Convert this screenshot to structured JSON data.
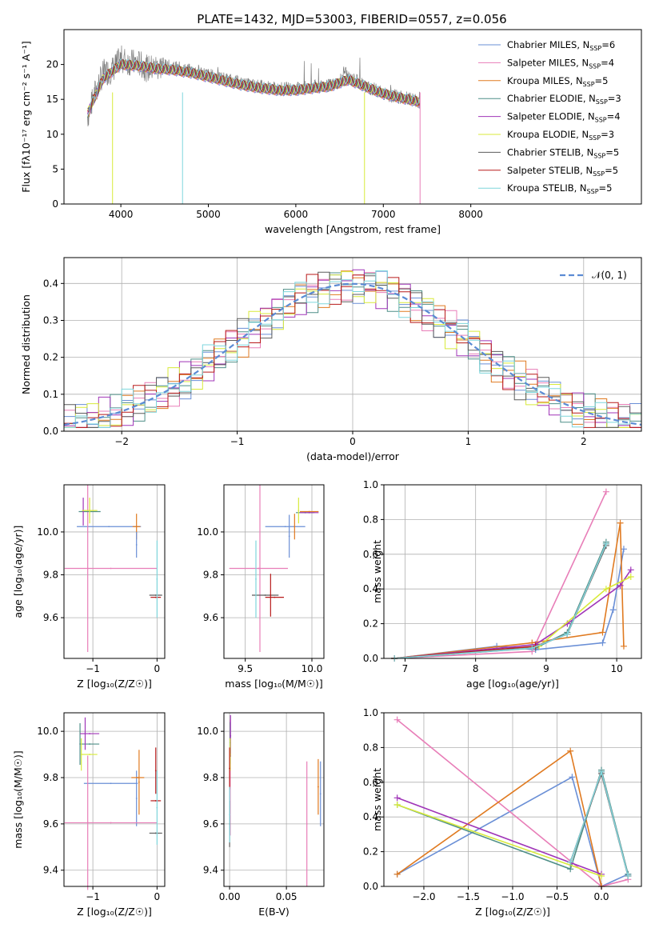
{
  "title": "PLATE=1432, MJD=53003, FIBERID=0557, z=0.056",
  "colors": {
    "chabrier_miles": "#6a8fd6",
    "salpeter_miles": "#e87eb8",
    "kroupa_miles": "#e07a20",
    "chabrier_elodie": "#4f8f88",
    "salpeter_elodie": "#a035b8",
    "kroupa_elodie": "#d8ea3a",
    "chabrier_stelib": "#5c5c5c",
    "salpeter_stelib": "#b81a1a",
    "kroupa_stelib": "#7ed6dc",
    "gauss": "#5b8bd4"
  },
  "legend": [
    {
      "label": "Chabrier MILES, N",
      "sub": "SSP",
      "suffix": "=6",
      "key": "chabrier_miles"
    },
    {
      "label": "Salpeter MILES, N",
      "sub": "SSP",
      "suffix": "=4",
      "key": "salpeter_miles"
    },
    {
      "label": "Kroupa MILES, N",
      "sub": "SSP",
      "suffix": "=5",
      "key": "kroupa_miles"
    },
    {
      "label": "Chabrier ELODIE, N",
      "sub": "SSP",
      "suffix": "=3",
      "key": "chabrier_elodie"
    },
    {
      "label": "Salpeter ELODIE, N",
      "sub": "SSP",
      "suffix": "=4",
      "key": "salpeter_elodie"
    },
    {
      "label": "Kroupa ELODIE, N",
      "sub": "SSP",
      "suffix": "=3",
      "key": "kroupa_elodie"
    },
    {
      "label": "Chabrier STELIB, N",
      "sub": "SSP",
      "suffix": "=5",
      "key": "chabrier_stelib"
    },
    {
      "label": "Salpeter STELIB, N",
      "sub": "SSP",
      "suffix": "=5",
      "key": "salpeter_stelib"
    },
    {
      "label": "Kroupa STELIB, N",
      "sub": "SSP",
      "suffix": "=5",
      "key": "kroupa_stelib"
    }
  ],
  "chart_data": [
    {
      "type": "line",
      "xlabel": "wavelength [Angstrom, rest frame]",
      "ylabel": "Flux [fλ10⁻¹⁷ erg cm⁻² s⁻¹ A⁻¹]",
      "xlim": [
        3350,
        9950
      ],
      "ylim": [
        0,
        25
      ],
      "xticks": [
        4000,
        5000,
        6000,
        7000,
        8000
      ],
      "yticks": [
        0,
        5,
        10,
        15,
        20
      ],
      "series_note_none": "",
      "spectrum": {
        "x": [
          3620,
          3700,
          3800,
          3900,
          4000,
          4100,
          4200,
          4300,
          4400,
          4500,
          4600,
          4700,
          4800,
          4900,
          5000,
          5200,
          5400,
          5600,
          5800,
          6000,
          6200,
          6400,
          6500,
          6560,
          6600,
          6700,
          6800,
          6900,
          7000,
          7100,
          7200,
          7300,
          7420
        ],
        "y": [
          12.5,
          15.8,
          18.8,
          19.2,
          20.8,
          20.3,
          20.2,
          19.4,
          19.6,
          19.8,
          19.6,
          19.3,
          19.1,
          19.0,
          18.5,
          17.9,
          17.2,
          16.8,
          16.5,
          16.5,
          16.8,
          17.0,
          17.5,
          19.2,
          18.0,
          17.7,
          16.8,
          16.4,
          15.9,
          15.5,
          15.3,
          15.1,
          14.6
        ]
      },
      "model": {
        "x": [
          3620,
          3800,
          4000,
          4200,
          4400,
          4600,
          4800,
          5000,
          5200,
          5400,
          5600,
          5800,
          6000,
          6200,
          6400,
          6600,
          6800,
          7000,
          7200,
          7420
        ],
        "y": [
          13.0,
          18.0,
          20.0,
          19.8,
          19.4,
          19.2,
          18.8,
          18.2,
          17.6,
          17.0,
          16.6,
          16.3,
          16.3,
          16.6,
          16.9,
          17.8,
          16.8,
          15.8,
          15.2,
          14.6
        ]
      }
    },
    {
      "type": "line",
      "xlabel": "(data-model)/error",
      "ylabel": "Normed distribution",
      "xlim": [
        -2.5,
        2.5
      ],
      "ylim": [
        0,
        0.47
      ],
      "xticks": [
        -2,
        -1,
        0,
        1,
        2
      ],
      "yticks": [
        0.0,
        0.1,
        0.2,
        0.3,
        0.4
      ],
      "legend_label": "𝒩(0, 1)",
      "bins": {
        "start": -2.5,
        "width": 0.1,
        "count": 50
      }
    },
    {
      "type": "scatter",
      "xlabel": "Z [log₁₀(Z/Z☉)]",
      "ylabel": "age  [log₁₀(age/yr)]",
      "xlim": [
        -1.45,
        0.12
      ],
      "ylim": [
        9.41,
        10.22
      ],
      "xticks": [
        -1,
        0
      ],
      "yticks": [
        9.6,
        9.8,
        10.0
      ],
      "points": [
        {
          "s": "chabrier_miles",
          "x": -0.75,
          "y": 10.025,
          "xe": 0.5,
          "ye": 0.0
        },
        {
          "s": "salpeter_miles",
          "x": -0.72,
          "y": 9.83,
          "xe": 0.72,
          "ye": 0.0
        },
        {
          "s": "salpeter_miles",
          "x": -1.08,
          "y": 9.83,
          "xe": 0.0,
          "ye": 0.39
        },
        {
          "s": "kroupa_miles",
          "x": -0.32,
          "y": 10.025,
          "xe": 0.06,
          "ye": 0.06
        },
        {
          "s": "chabrier_elodie",
          "x": -1.05,
          "y": 10.095,
          "xe": 0.17,
          "ye": 0.0
        },
        {
          "s": "salpeter_elodie",
          "x": -1.15,
          "y": 10.095,
          "xe": 0.0,
          "ye": 0.065
        },
        {
          "s": "kroupa_elodie",
          "x": -1.05,
          "y": 10.1,
          "xe": 0.12,
          "ye": 0.06
        },
        {
          "s": "chabrier_stelib",
          "x": -0.02,
          "y": 9.705,
          "xe": 0.1,
          "ye": 0.0
        },
        {
          "s": "salpeter_stelib",
          "x": -0.02,
          "y": 9.695,
          "xe": 0.08,
          "ye": 0.0
        },
        {
          "s": "kroupa_stelib",
          "x": 0.0,
          "y": 9.78,
          "xe": 0.0,
          "ye": 0.18
        },
        {
          "s": "chabrier_miles",
          "x": -0.32,
          "y": 9.94,
          "xe": 0.0,
          "ye": 0.06
        }
      ]
    },
    {
      "type": "scatter",
      "xlabel": "mass [log₁₀(M/M☉)]",
      "ylabel": "",
      "xlim": [
        9.34,
        10.09
      ],
      "ylim": [
        9.41,
        10.22
      ],
      "xticks": [
        9.5,
        10.0
      ],
      "yticks": [
        9.6,
        9.8,
        10.0
      ],
      "points": [
        {
          "s": "chabrier_miles",
          "x": 9.8,
          "y": 10.025,
          "xe": 0.15,
          "ye": 0.0
        },
        {
          "s": "chabrier_miles",
          "x": 9.83,
          "y": 9.98,
          "xe": 0.0,
          "ye": 0.1
        },
        {
          "s": "salpeter_miles",
          "x": 9.6,
          "y": 9.83,
          "xe": 0.22,
          "ye": 0.0
        },
        {
          "s": "salpeter_miles",
          "x": 9.61,
          "y": 9.83,
          "xe": 0.0,
          "ye": 0.39
        },
        {
          "s": "kroupa_miles",
          "x": 9.98,
          "y": 10.095,
          "xe": 0.07,
          "ye": 0.0
        },
        {
          "s": "kroupa_miles",
          "x": 9.87,
          "y": 10.025,
          "xe": 0.0,
          "ye": 0.06
        },
        {
          "s": "chabrier_elodie",
          "x": 9.95,
          "y": 10.09,
          "xe": 0.07,
          "ye": 0.0
        },
        {
          "s": "salpeter_elodie",
          "x": 9.98,
          "y": 10.09,
          "xe": 0.07,
          "ye": 0.0
        },
        {
          "s": "kroupa_elodie",
          "x": 9.9,
          "y": 10.1,
          "xe": 0.0,
          "ye": 0.06
        },
        {
          "s": "chabrier_stelib",
          "x": 9.65,
          "y": 9.705,
          "xe": 0.1,
          "ye": 0.0
        },
        {
          "s": "salpeter_stelib",
          "x": 9.72,
          "y": 9.695,
          "xe": 0.07,
          "ye": 0.0
        },
        {
          "s": "salpeter_stelib",
          "x": 9.69,
          "y": 9.705,
          "xe": 0.0,
          "ye": 0.1
        },
        {
          "s": "kroupa_stelib",
          "x": 9.58,
          "y": 9.78,
          "xe": 0.0,
          "ye": 0.18
        }
      ]
    },
    {
      "type": "line",
      "xlabel": "age  [log₁₀(age/yr)]",
      "ylabel": "mass weight",
      "xlim": [
        6.7,
        10.35
      ],
      "ylim": [
        0,
        1.0
      ],
      "xticks": [
        7,
        8,
        9,
        10
      ],
      "yticks": [
        0.0,
        0.2,
        0.4,
        0.6,
        0.8,
        1.0
      ],
      "series": [
        {
          "s": "chabrier_miles",
          "x": [
            6.85,
            8.3,
            8.85,
            9.8,
            9.95,
            10.1
          ],
          "y": [
            0.0,
            0.07,
            0.05,
            0.09,
            0.28,
            0.63
          ]
        },
        {
          "s": "salpeter_miles",
          "x": [
            6.85,
            8.8,
            9.85
          ],
          "y": [
            0.0,
            0.04,
            0.96
          ]
        },
        {
          "s": "kroupa_miles",
          "x": [
            6.85,
            8.8,
            9.8,
            10.05,
            10.1
          ],
          "y": [
            0.0,
            0.09,
            0.15,
            0.78,
            0.07
          ]
        },
        {
          "s": "chabrier_elodie",
          "x": [
            6.85,
            8.85,
            9.3,
            9.85
          ],
          "y": [
            0.0,
            0.06,
            0.15,
            0.67
          ]
        },
        {
          "s": "salpeter_elodie",
          "x": [
            6.85,
            8.85,
            9.3,
            10.05,
            10.2
          ],
          "y": [
            0.0,
            0.08,
            0.2,
            0.42,
            0.51
          ]
        },
        {
          "s": "kroupa_elodie",
          "x": [
            6.85,
            8.9,
            9.85,
            10.2
          ],
          "y": [
            0.0,
            0.07,
            0.4,
            0.47
          ]
        },
        {
          "s": "chabrier_stelib",
          "x": [
            6.85,
            8.8,
            9.3,
            9.85
          ],
          "y": [
            0.0,
            0.06,
            0.14,
            0.65
          ]
        },
        {
          "s": "salpeter_stelib",
          "x": [
            6.85,
            8.85,
            9.3,
            9.85
          ],
          "y": [
            0.0,
            0.07,
            0.14,
            0.66
          ]
        },
        {
          "s": "kroupa_stelib",
          "x": [
            6.85,
            8.8,
            9.3,
            9.85
          ],
          "y": [
            0.0,
            0.06,
            0.14,
            0.66
          ]
        }
      ]
    },
    {
      "type": "scatter",
      "xlabel": "Z [log₁₀(Z/Z☉)]",
      "ylabel": "mass [log₁₀(M/M☉)]",
      "xlim": [
        -1.45,
        0.12
      ],
      "ylim": [
        9.33,
        10.08
      ],
      "xticks": [
        -1,
        0
      ],
      "yticks": [
        9.4,
        9.6,
        9.8,
        10.0
      ],
      "points": [
        {
          "s": "chabrier_miles",
          "x": -0.72,
          "y": 9.775,
          "xe": 0.42,
          "ye": 0.0
        },
        {
          "s": "chabrier_miles",
          "x": -0.32,
          "y": 9.71,
          "xe": 0.0,
          "ye": 0.12
        },
        {
          "s": "salpeter_miles",
          "x": -0.72,
          "y": 9.605,
          "xe": 0.72,
          "ye": 0.0
        },
        {
          "s": "salpeter_miles",
          "x": -1.08,
          "y": 9.605,
          "xe": 0.0,
          "ye": 0.29
        },
        {
          "s": "kroupa_miles",
          "x": -0.3,
          "y": 9.8,
          "xe": 0.1,
          "ye": 0.0
        },
        {
          "s": "kroupa_miles",
          "x": -0.28,
          "y": 9.78,
          "xe": 0.0,
          "ye": 0.14
        },
        {
          "s": "chabrier_elodie",
          "x": -1.05,
          "y": 9.945,
          "xe": 0.15,
          "ye": 0.0
        },
        {
          "s": "chabrier_elodie",
          "x": -1.2,
          "y": 9.945,
          "xe": 0.0,
          "ye": 0.09
        },
        {
          "s": "salpeter_elodie",
          "x": -1.05,
          "y": 9.99,
          "xe": 0.15,
          "ye": 0.0
        },
        {
          "s": "salpeter_elodie",
          "x": -1.12,
          "y": 9.99,
          "xe": 0.0,
          "ye": 0.07
        },
        {
          "s": "kroupa_elodie",
          "x": -1.05,
          "y": 9.9,
          "xe": 0.12,
          "ye": 0.0
        },
        {
          "s": "kroupa_elodie",
          "x": -1.18,
          "y": 9.9,
          "xe": 0.0,
          "ye": 0.07
        },
        {
          "s": "chabrier_stelib",
          "x": -0.02,
          "y": 9.56,
          "xe": 0.1,
          "ye": 0.0
        },
        {
          "s": "salpeter_stelib",
          "x": -0.02,
          "y": 9.7,
          "xe": 0.08,
          "ye": 0.0
        },
        {
          "s": "salpeter_stelib",
          "x": -0.02,
          "y": 9.83,
          "xe": 0.0,
          "ye": 0.1
        },
        {
          "s": "kroupa_stelib",
          "x": 0.0,
          "y": 9.67,
          "xe": 0.0,
          "ye": 0.16
        }
      ]
    },
    {
      "type": "scatter",
      "xlabel": "E(B-V)",
      "ylabel": "",
      "xlim": [
        -0.005,
        0.083
      ],
      "ylim": [
        9.33,
        10.08
      ],
      "xticks": [
        0.0,
        0.05
      ],
      "yticks": [
        9.4,
        9.6,
        9.8,
        10.0
      ],
      "points": [
        {
          "s": "chabrier_miles",
          "x": 0.08,
          "y": 9.73,
          "xe": 0.0,
          "ye": 0.14
        },
        {
          "s": "salpeter_miles",
          "x": 0.0005,
          "y": 9.8,
          "xe": 0.0,
          "ye": 0.25
        },
        {
          "s": "salpeter_miles",
          "x": 0.068,
          "y": 9.6,
          "xe": 0.0,
          "ye": 0.27
        },
        {
          "s": "kroupa_miles",
          "x": 0.078,
          "y": 9.76,
          "xe": 0.0,
          "ye": 0.12
        },
        {
          "s": "chabrier_elodie",
          "x": 0.0005,
          "y": 9.95,
          "xe": 0.0,
          "ye": 0.09
        },
        {
          "s": "salpeter_elodie",
          "x": 0.0008,
          "y": 9.98,
          "xe": 0.0,
          "ye": 0.09
        },
        {
          "s": "kroupa_elodie",
          "x": 0.0005,
          "y": 9.9,
          "xe": 0.0,
          "ye": 0.07
        },
        {
          "s": "chabrier_stelib",
          "x": 0.0,
          "y": 9.6,
          "xe": 0.0,
          "ye": 0.1
        },
        {
          "s": "salpeter_stelib",
          "x": 0.0,
          "y": 9.84,
          "xe": 0.0,
          "ye": 0.09
        },
        {
          "s": "kroupa_stelib",
          "x": 0.0,
          "y": 9.64,
          "xe": 0.0,
          "ye": 0.12
        }
      ]
    },
    {
      "type": "line",
      "xlabel": "Z [log₁₀(Z/Z☉)]",
      "ylabel": "mass weight",
      "xlim": [
        -2.45,
        0.45
      ],
      "ylim": [
        0,
        1.0
      ],
      "xticks": [
        -2.0,
        -1.5,
        -1.0,
        -0.5,
        0.0
      ],
      "yticks": [
        0.0,
        0.2,
        0.4,
        0.6,
        0.8,
        1.0
      ],
      "series": [
        {
          "s": "chabrier_miles",
          "x": [
            -2.3,
            -0.33,
            0.0,
            0.3
          ],
          "y": [
            0.07,
            0.63,
            0.0,
            0.07
          ]
        },
        {
          "s": "salpeter_miles",
          "x": [
            -2.3,
            0.0,
            0.3
          ],
          "y": [
            0.96,
            0.0,
            0.04
          ]
        },
        {
          "s": "kroupa_miles",
          "x": [
            -2.3,
            -0.35,
            0.0
          ],
          "y": [
            0.07,
            0.78,
            0.0
          ]
        },
        {
          "s": "chabrier_elodie",
          "x": [
            -2.3,
            -0.35,
            0.0,
            0.3
          ],
          "y": [
            0.47,
            0.1,
            0.67,
            0.07
          ]
        },
        {
          "s": "salpeter_elodie",
          "x": [
            -2.3,
            0.0
          ],
          "y": [
            0.51,
            0.07
          ]
        },
        {
          "s": "kroupa_elodie",
          "x": [
            -2.3,
            0.0
          ],
          "y": [
            0.47,
            0.06
          ]
        },
        {
          "s": "chabrier_stelib",
          "x": [
            -0.35,
            0.0,
            0.3
          ],
          "y": [
            0.14,
            0.65,
            0.06
          ]
        },
        {
          "s": "salpeter_stelib",
          "x": [
            -0.35,
            0.0,
            0.3
          ],
          "y": [
            0.14,
            0.66,
            0.06
          ]
        },
        {
          "s": "kroupa_stelib",
          "x": [
            -0.35,
            0.0,
            0.3
          ],
          "y": [
            0.14,
            0.66,
            0.06
          ]
        }
      ]
    }
  ]
}
